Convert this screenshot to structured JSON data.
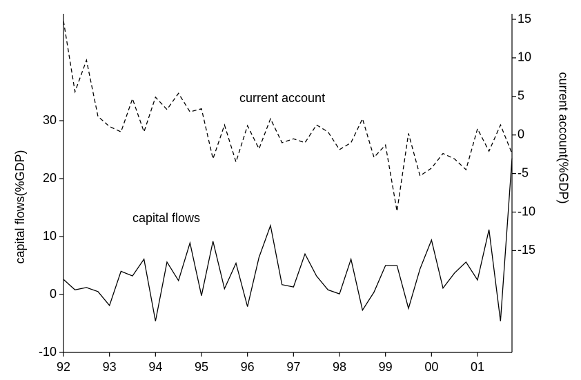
{
  "chart_data": {
    "type": "line",
    "ylabel": "capital flows(%GDP)",
    "y2label": "current account(%GDP)",
    "annotations": [
      "current account",
      "capital flows"
    ],
    "x": [
      1992,
      1992.25,
      1992.5,
      1992.75,
      1993,
      1993.25,
      1993.5,
      1993.75,
      1994,
      1994.25,
      1994.5,
      1994.75,
      1995,
      1995.25,
      1995.5,
      1995.75,
      1996,
      1996.25,
      1996.5,
      1996.75,
      1997,
      1997.25,
      1997.5,
      1997.75,
      1998,
      1998.25,
      1998.5,
      1998.75,
      1999,
      1999.25,
      1999.5,
      1999.75,
      2000,
      2000.25,
      2000.5,
      2000.75,
      2001,
      2001.25,
      2001.5,
      2001.75
    ],
    "series": [
      {
        "name": "capital flows",
        "color": "#000000",
        "dash": "none",
        "values": [
          2.6,
          0.8,
          1.2,
          0.5,
          -1.9,
          4.0,
          3.2,
          6.1,
          -4.6,
          5.6,
          2.4,
          8.9,
          -0.2,
          9.2,
          1.0,
          5.4,
          -2.1,
          6.4,
          11.9,
          1.7,
          1.3,
          7.0,
          3.2,
          0.8,
          0.1,
          6.1,
          -2.7,
          0.4,
          5.0,
          5.0,
          -2.4,
          4.4,
          9.4,
          1.1,
          3.7,
          5.6,
          2.5,
          11.2,
          -4.6,
          23.5
        ]
      },
      {
        "name": "current account",
        "color": "#000000",
        "dash": "6,4",
        "axis": "y2",
        "values": [
          14.8,
          5.6,
          9.7,
          2.4,
          1.1,
          0.4,
          4.7,
          0.4,
          4.9,
          3.3,
          5.4,
          3.0,
          3.4,
          -3.1,
          1.3,
          -3.5,
          1.2,
          -1.8,
          2.1,
          -1.0,
          -0.5,
          -1.0,
          1.3,
          0.4,
          -1.9,
          -1.0,
          2.1,
          -2.9,
          -1.3,
          -9.9,
          0.2,
          -5.3,
          -4.3,
          -2.4,
          -3.1,
          -4.5,
          0.8,
          -2.1,
          1.3,
          -2.4
        ]
      }
    ],
    "xlim": [
      1992,
      2001.75
    ],
    "xticks": [
      {
        "value": 1992,
        "label": "92"
      },
      {
        "value": 1993,
        "label": "93"
      },
      {
        "value": 1994,
        "label": "94"
      },
      {
        "value": 1995,
        "label": "95"
      },
      {
        "value": 1996,
        "label": "96"
      },
      {
        "value": 1997,
        "label": "97"
      },
      {
        "value": 1998,
        "label": "98"
      },
      {
        "value": 1999,
        "label": "99"
      },
      {
        "value": 2000,
        "label": "00"
      },
      {
        "value": 2001,
        "label": "01"
      }
    ],
    "ylim": [
      -10,
      47.5
    ],
    "yticks": [
      -10,
      0,
      10,
      20,
      30
    ],
    "y2lim": [
      -28.2,
      15
    ],
    "y2ticks": [
      -15,
      -10,
      -5,
      0,
      5,
      10,
      15
    ],
    "grid": false
  }
}
